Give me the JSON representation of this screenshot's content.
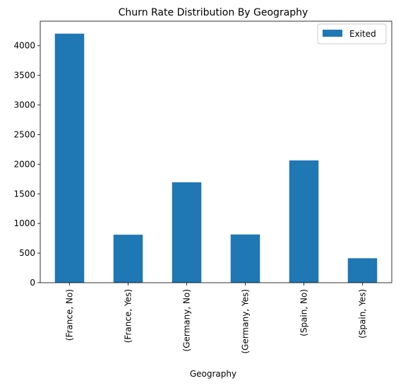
{
  "chart_data": {
    "type": "bar",
    "title": "Churn Rate Distribution By Geography",
    "xlabel": "Geography",
    "ylabel": "",
    "categories": [
      "(France, No)",
      "(France, Yes)",
      "(Germany, No)",
      "(Germany, Yes)",
      "(Spain, No)",
      "(Spain, Yes)"
    ],
    "series": [
      {
        "name": "Exited",
        "values": [
          4204,
          810,
          1695,
          814,
          2064,
          413
        ],
        "color": "#1f77b4"
      }
    ],
    "ylim": [
      0,
      4414
    ],
    "yticks": [
      0,
      500,
      1000,
      1500,
      2000,
      2500,
      3000,
      3500,
      4000
    ],
    "legend": {
      "position": "top-right",
      "labels": [
        "Exited"
      ]
    },
    "grid": false
  }
}
